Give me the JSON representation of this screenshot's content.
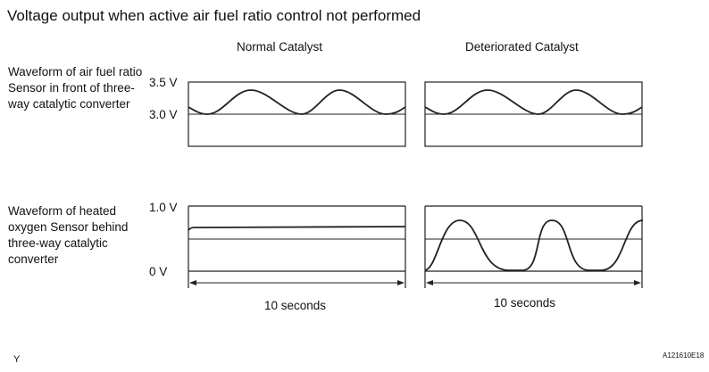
{
  "title": "Voltage output when active air fuel ratio control not performed",
  "columns": [
    "Normal Catalyst",
    "Deteriorated Catalyst"
  ],
  "rows": [
    {
      "label": "Waveform of air fuel ratio Sensor in front of three-way catalytic converter",
      "axis_top": "3.5 V",
      "axis_ref": "3.0 V"
    },
    {
      "label": "Waveform of heated oxygen Sensor behind three-way catalytic converter",
      "axis_top": "1.0 V",
      "axis_bottom": "0 V"
    }
  ],
  "duration_label": "10 seconds",
  "corner_mark": "Y",
  "figure_code": "A121610E18"
}
